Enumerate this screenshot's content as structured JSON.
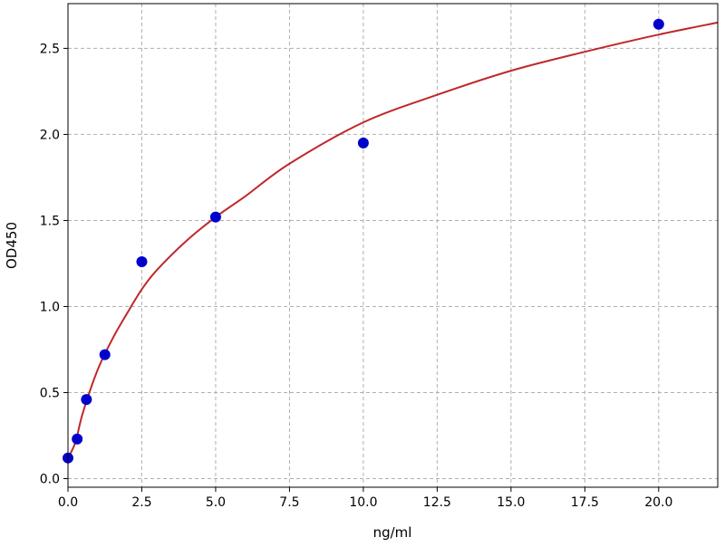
{
  "chart_data": {
    "type": "scatter",
    "title": "",
    "xlabel": "ng/ml",
    "ylabel": "OD450",
    "xlim": [
      0,
      22
    ],
    "ylim": [
      -0.05,
      2.76
    ],
    "xticks": [
      0.0,
      2.5,
      5.0,
      7.5,
      10.0,
      12.5,
      15.0,
      17.5,
      20.0
    ],
    "xtick_labels": [
      "0.0",
      "2.5",
      "5.0",
      "7.5",
      "10.0",
      "12.5",
      "15.0",
      "17.5",
      "20.0"
    ],
    "yticks": [
      0.0,
      0.5,
      1.0,
      1.5,
      2.0,
      2.5
    ],
    "ytick_labels": [
      "0.0",
      "0.5",
      "1.0",
      "1.5",
      "2.0",
      "2.5"
    ],
    "grid": true,
    "points": {
      "color": "#0000cc",
      "x": [
        0,
        0.3125,
        0.625,
        1.25,
        2.5,
        5,
        10,
        20
      ],
      "y": [
        0.12,
        0.23,
        0.46,
        0.72,
        1.26,
        1.52,
        1.95,
        2.64
      ]
    },
    "fit_curve": {
      "color": "#c0282a",
      "x": [
        0,
        0.25,
        0.5,
        1,
        1.5,
        2,
        2.5,
        3,
        4,
        5,
        6,
        7.5,
        10,
        12.5,
        15,
        17.5,
        20,
        22
      ],
      "y": [
        0.12,
        0.21,
        0.38,
        0.63,
        0.81,
        0.96,
        1.1,
        1.21,
        1.38,
        1.52,
        1.64,
        1.83,
        2.07,
        2.23,
        2.37,
        2.48,
        2.58,
        2.65
      ]
    }
  }
}
